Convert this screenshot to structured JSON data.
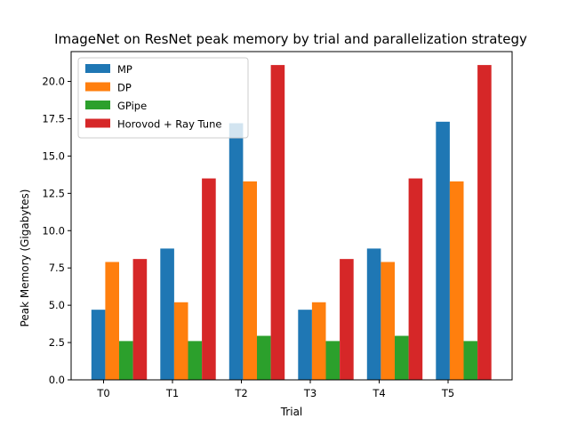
{
  "chart_data": {
    "type": "bar",
    "title": "ImageNet on ResNet peak memory by trial and parallelization strategy",
    "xlabel": "Trial",
    "ylabel": "Peak Memory (Gigabytes)",
    "categories": [
      "T0",
      "T1",
      "T2",
      "T3",
      "T4",
      "T5"
    ],
    "ylim": [
      0,
      22
    ],
    "yticks": [
      "0.0",
      "2.5",
      "5.0",
      "7.5",
      "10.0",
      "12.5",
      "15.0",
      "17.5",
      "20.0"
    ],
    "grid": false,
    "legend_position": "top-left",
    "series": [
      {
        "name": "MP",
        "color": "#1f77b4",
        "values": [
          4.7,
          8.8,
          17.2,
          4.7,
          8.8,
          17.3
        ]
      },
      {
        "name": "DP",
        "color": "#ff7f0e",
        "values": [
          7.9,
          5.2,
          13.3,
          5.2,
          7.9,
          13.3
        ]
      },
      {
        "name": "GPipe",
        "color": "#2ca02c",
        "values": [
          2.6,
          2.6,
          2.95,
          2.6,
          2.95,
          2.6
        ]
      },
      {
        "name": "Horovod + Ray Tune",
        "color": "#d62728",
        "values": [
          8.1,
          13.5,
          21.1,
          8.1,
          13.5,
          21.1
        ]
      }
    ]
  }
}
